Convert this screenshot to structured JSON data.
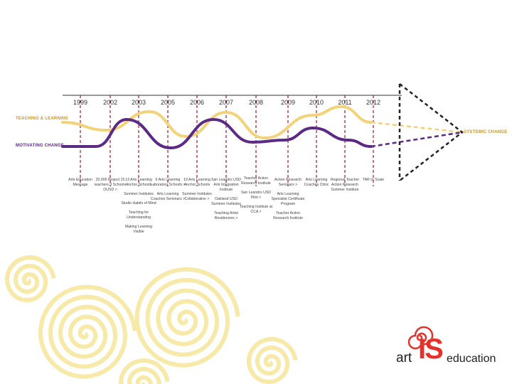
{
  "years": [
    "1999",
    "2002",
    "2003",
    "2005",
    "2006",
    "2007",
    "2008",
    "2009",
    "2010",
    "2011",
    "2012"
  ],
  "lanes": {
    "teaching": {
      "label": "TEACHING & LEARNING",
      "color": "#f2d37a"
    },
    "motivating": {
      "label": "MOTIVATING CHANGE",
      "color": "#5b2a86"
    }
  },
  "outcome": {
    "label": "SYSTEMIC CHANGE"
  },
  "colors": {
    "year_line": "#9b1c2e",
    "frame": "#222222",
    "accent": "#e4312b",
    "swirl": "#f7e9a8"
  },
  "milestones": [
    {
      "year": "1999",
      "items": [
        "Arts Education Message"
      ]
    },
    {
      "year": "2002",
      "items": [
        "20,000 Project 15 teachers 3 Schools OUSD >"
      ]
    },
    {
      "year": "2003",
      "items": [
        "13 Arts Learning Anchor Schools",
        "Summer Institutes",
        "Studio Habits of Mind",
        "Teaching for Understanding",
        "Making Learning Visible"
      ]
    },
    {
      "year": "2005",
      "items": [
        "6 Arts Learning Laboratory Schools >",
        "Arts Learning Coaches Seminars >"
      ]
    },
    {
      "year": "2006",
      "items": [
        "19 Arts Learning Anchor Schools",
        "Summer Institutes Collaborative >"
      ]
    },
    {
      "year": "2007",
      "items": [
        "San Leandro USD Arts Integration Institute",
        "Oakland USD Summer Institutes",
        "Teaching Artist Residencies >"
      ]
    },
    {
      "year": "2008",
      "items": [
        "Teacher Action Research Institute",
        "San Leandro USD Pilot >",
        "Teaching Institute at CCA >"
      ]
    },
    {
      "year": "2009",
      "items": [
        "Action Research Seminars >",
        "Arts Learning Specialist Certificate Program",
        "Teacher Action Research Institute"
      ]
    },
    {
      "year": "2010",
      "items": [
        "Arts Learning Coaches Clinic"
      ]
    },
    {
      "year": "2011",
      "items": [
        "Regional Teacher Action Research Summer Institute"
      ]
    },
    {
      "year": "2012",
      "items": [
        "TAR to Scale"
      ]
    }
  ],
  "logo": {
    "word1": "art",
    "word2": "IS",
    "word3": "education"
  }
}
